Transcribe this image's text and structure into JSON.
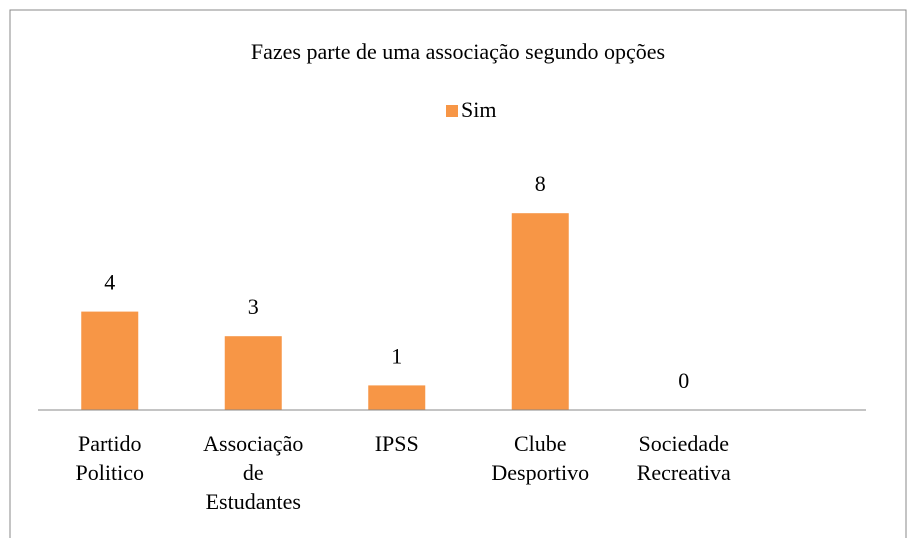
{
  "chart_data": {
    "type": "bar",
    "title": "Fazes parte de uma associação segundo opções",
    "categories": [
      "Partido Politico",
      "Associação de Estudantes",
      "IPSS",
      "Clube Desportivo",
      "Sociedade Recreativa"
    ],
    "series": [
      {
        "name": "Sim",
        "color": "#f79646",
        "values": [
          4,
          3,
          1,
          8,
          0
        ]
      }
    ],
    "ylim": [
      0,
      9
    ],
    "legend": "top"
  }
}
